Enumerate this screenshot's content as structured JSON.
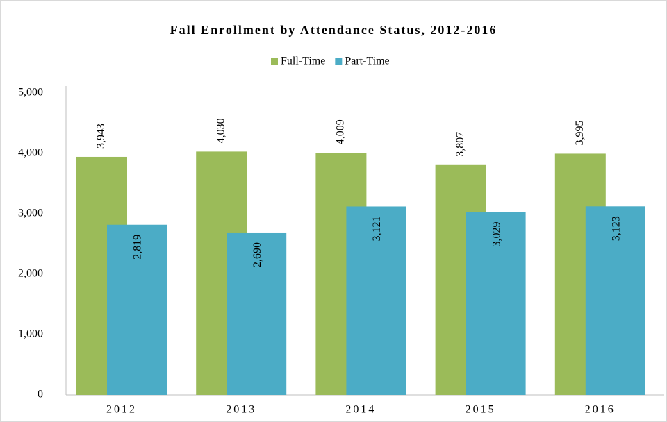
{
  "chart_data": {
    "type": "bar",
    "title": "Fall Enrollment by Attendance Status, 2012-2016",
    "categories": [
      "2012",
      "2013",
      "2014",
      "2015",
      "2016"
    ],
    "series": [
      {
        "name": "Full-Time",
        "color": "#9bbb59",
        "values": [
          3943,
          4030,
          4009,
          3807,
          3995
        ],
        "value_labels": [
          "3,943",
          "4,030",
          "4,009",
          "3,807",
          "3,995"
        ]
      },
      {
        "name": "Part-Time",
        "color": "#4bacc6",
        "values": [
          2819,
          2690,
          3121,
          3029,
          3123
        ],
        "value_labels": [
          "2,819",
          "2,690",
          "3,121",
          "3,029",
          "3,123"
        ]
      }
    ],
    "ylim": [
      0,
      5000
    ],
    "yticks": [
      0,
      {
        "value": 1000,
        "label": "1,000"
      },
      {
        "value": 2000,
        "label": "2,000"
      },
      {
        "value": 3000,
        "label": "3,000"
      },
      {
        "value": 4000,
        "label": "4,000"
      },
      {
        "value": 5000,
        "label": "5,000"
      }
    ],
    "grid": false,
    "legend": "top"
  }
}
